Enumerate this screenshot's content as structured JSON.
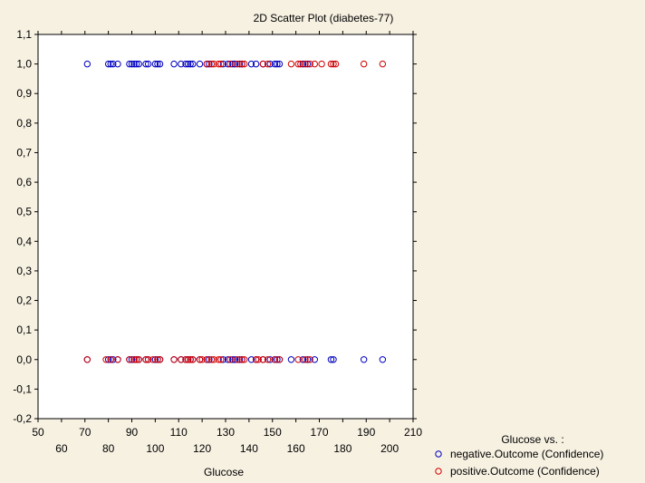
{
  "chart_data": {
    "type": "scatter",
    "title": "2D Scatter Plot (diabetes-77)",
    "xlabel": "Glucose",
    "ylabel": "",
    "xlim": [
      50,
      210
    ],
    "ylim": [
      -0.2,
      1.1
    ],
    "x_ticks_upper": [
      "50",
      "70",
      "90",
      "110",
      "130",
      "150",
      "170",
      "190",
      "210"
    ],
    "x_ticks_lower": [
      "60",
      "80",
      "100",
      "120",
      "140",
      "160",
      "180",
      "200"
    ],
    "y_ticks": [
      "-0,2",
      "-0,1",
      "0,0",
      "0,1",
      "0,2",
      "0,3",
      "0,4",
      "0,5",
      "0,6",
      "0,7",
      "0,8",
      "0,9",
      "1,0",
      "1,1"
    ],
    "y_tick_values": [
      -0.2,
      -0.1,
      0.0,
      0.1,
      0.2,
      0.3,
      0.4,
      0.5,
      0.6,
      0.7,
      0.8,
      0.9,
      1.0,
      1.1
    ],
    "grid": false,
    "legend": {
      "title": "Glucose  vs. :",
      "placement": "bottom-right"
    },
    "series": [
      {
        "name": "negative.Outcome (Confidence)",
        "color": "#0000c0",
        "marker": "circle-open",
        "x": [
          71,
          80,
          81,
          82,
          84,
          89,
          90,
          91,
          92,
          93,
          96,
          97,
          100,
          101,
          102,
          108,
          111,
          113,
          114,
          115,
          116,
          119,
          122,
          123,
          129,
          131,
          133,
          134,
          136,
          137,
          141,
          143,
          146,
          149,
          151,
          152,
          153,
          163,
          165,
          71,
          80,
          81,
          82,
          84,
          89,
          90,
          91,
          92,
          93,
          96,
          97,
          100,
          101,
          102,
          108,
          111,
          113,
          114,
          115,
          116,
          119,
          122,
          123,
          129,
          131,
          133,
          134,
          136,
          137,
          141,
          143,
          146,
          149,
          151,
          152,
          153,
          158,
          163,
          165,
          168,
          175,
          176,
          189,
          197
        ],
        "y": [
          1.0,
          1.0,
          1.0,
          1.0,
          1.0,
          1.0,
          1.0,
          1.0,
          1.0,
          1.0,
          1.0,
          1.0,
          1.0,
          1.0,
          1.0,
          1.0,
          1.0,
          1.0,
          1.0,
          1.0,
          1.0,
          1.0,
          1.0,
          1.0,
          1.0,
          1.0,
          1.0,
          1.0,
          1.0,
          1.0,
          1.0,
          1.0,
          1.0,
          1.0,
          1.0,
          1.0,
          1.0,
          1.0,
          1.0,
          0.0,
          0.0,
          0.0,
          0.0,
          0.0,
          0.0,
          0.0,
          0.0,
          0.0,
          0.0,
          0.0,
          0.0,
          0.0,
          0.0,
          0.0,
          0.0,
          0.0,
          0.0,
          0.0,
          0.0,
          0.0,
          0.0,
          0.0,
          0.0,
          0.0,
          0.0,
          0.0,
          0.0,
          0.0,
          0.0,
          0.0,
          0.0,
          0.0,
          0.0,
          0.0,
          0.0,
          0.0,
          0.0,
          0.0,
          0.0,
          0.0,
          0.0,
          0.0,
          0.0,
          0.0
        ]
      },
      {
        "name": "positive.Outcome (Confidence)",
        "color": "#d00000",
        "marker": "circle-open",
        "x": [
          122,
          124,
          125,
          127,
          128,
          132,
          135,
          137,
          138,
          146,
          148,
          158,
          161,
          162,
          164,
          166,
          168,
          171,
          175,
          176,
          177,
          189,
          197,
          71,
          79,
          81,
          84,
          89,
          91,
          92,
          93,
          96,
          97,
          99,
          101,
          102,
          108,
          111,
          113,
          114,
          115,
          116,
          119,
          120,
          122,
          124,
          125,
          127,
          128,
          132,
          135,
          137,
          138,
          143,
          144,
          146,
          148,
          151,
          153,
          161,
          164,
          166
        ],
        "y": [
          1.0,
          1.0,
          1.0,
          1.0,
          1.0,
          1.0,
          1.0,
          1.0,
          1.0,
          1.0,
          1.0,
          1.0,
          1.0,
          1.0,
          1.0,
          1.0,
          1.0,
          1.0,
          1.0,
          1.0,
          1.0,
          1.0,
          1.0,
          0.0,
          0.0,
          0.0,
          0.0,
          0.0,
          0.0,
          0.0,
          0.0,
          0.0,
          0.0,
          0.0,
          0.0,
          0.0,
          0.0,
          0.0,
          0.0,
          0.0,
          0.0,
          0.0,
          0.0,
          0.0,
          0.0,
          0.0,
          0.0,
          0.0,
          0.0,
          0.0,
          0.0,
          0.0,
          0.0,
          0.0,
          0.0,
          0.0,
          0.0,
          0.0,
          0.0,
          0.0,
          0.0,
          0.0
        ]
      }
    ]
  }
}
